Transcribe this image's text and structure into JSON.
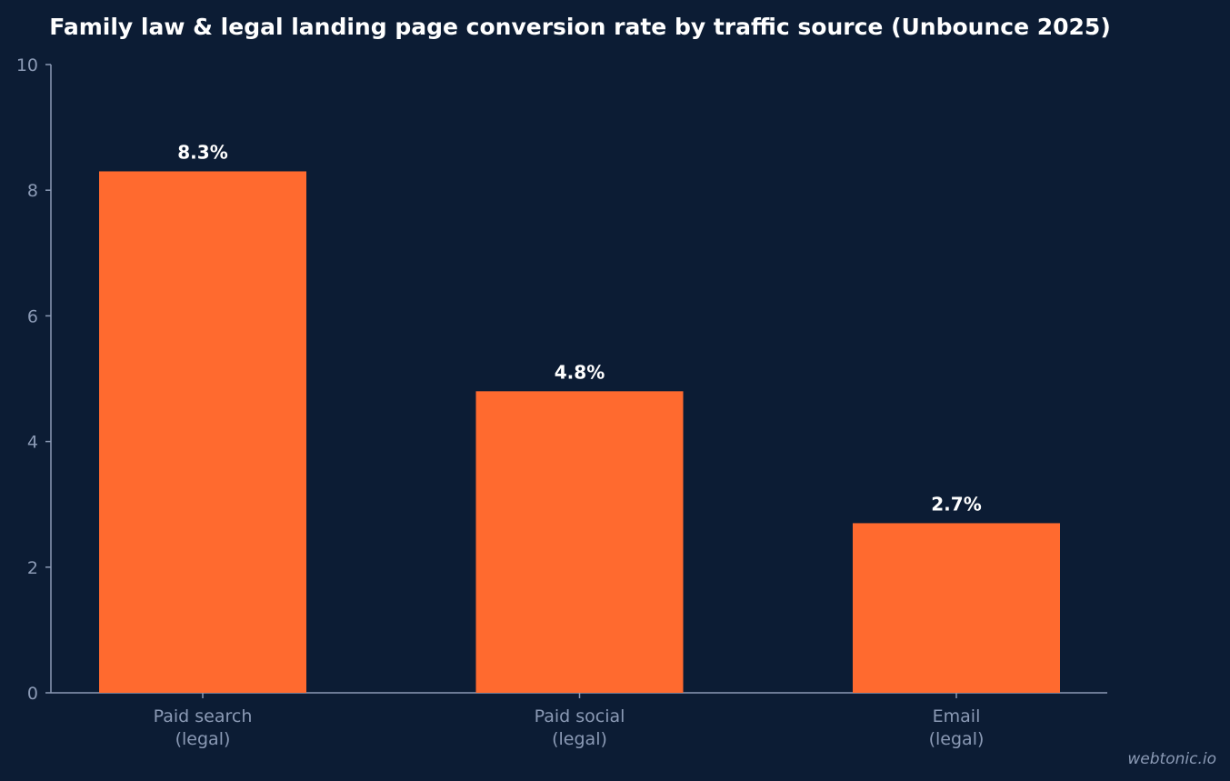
{
  "chart_data": {
    "type": "bar",
    "title": "Family law & legal landing page conversion rate by traffic source (Unbounce 2025)",
    "xlabel": "",
    "ylabel": "",
    "categories": [
      [
        "Paid search",
        "(legal)"
      ],
      [
        "Paid social",
        "(legal)"
      ],
      [
        "Email",
        "(legal)"
      ]
    ],
    "values": [
      8.3,
      4.8,
      2.7
    ],
    "data_labels": [
      "8.3%",
      "4.8%",
      "2.7%"
    ],
    "ylim": [
      0,
      10
    ],
    "yticks": [
      0,
      2,
      4,
      6,
      8,
      10
    ],
    "grid": false,
    "legend": "none"
  },
  "watermark": "webtonic.io",
  "colors": {
    "background": "#0c1c34",
    "bar": "#ff6a2f",
    "axis": "#8b9ab5",
    "title": "#ffffff"
  }
}
